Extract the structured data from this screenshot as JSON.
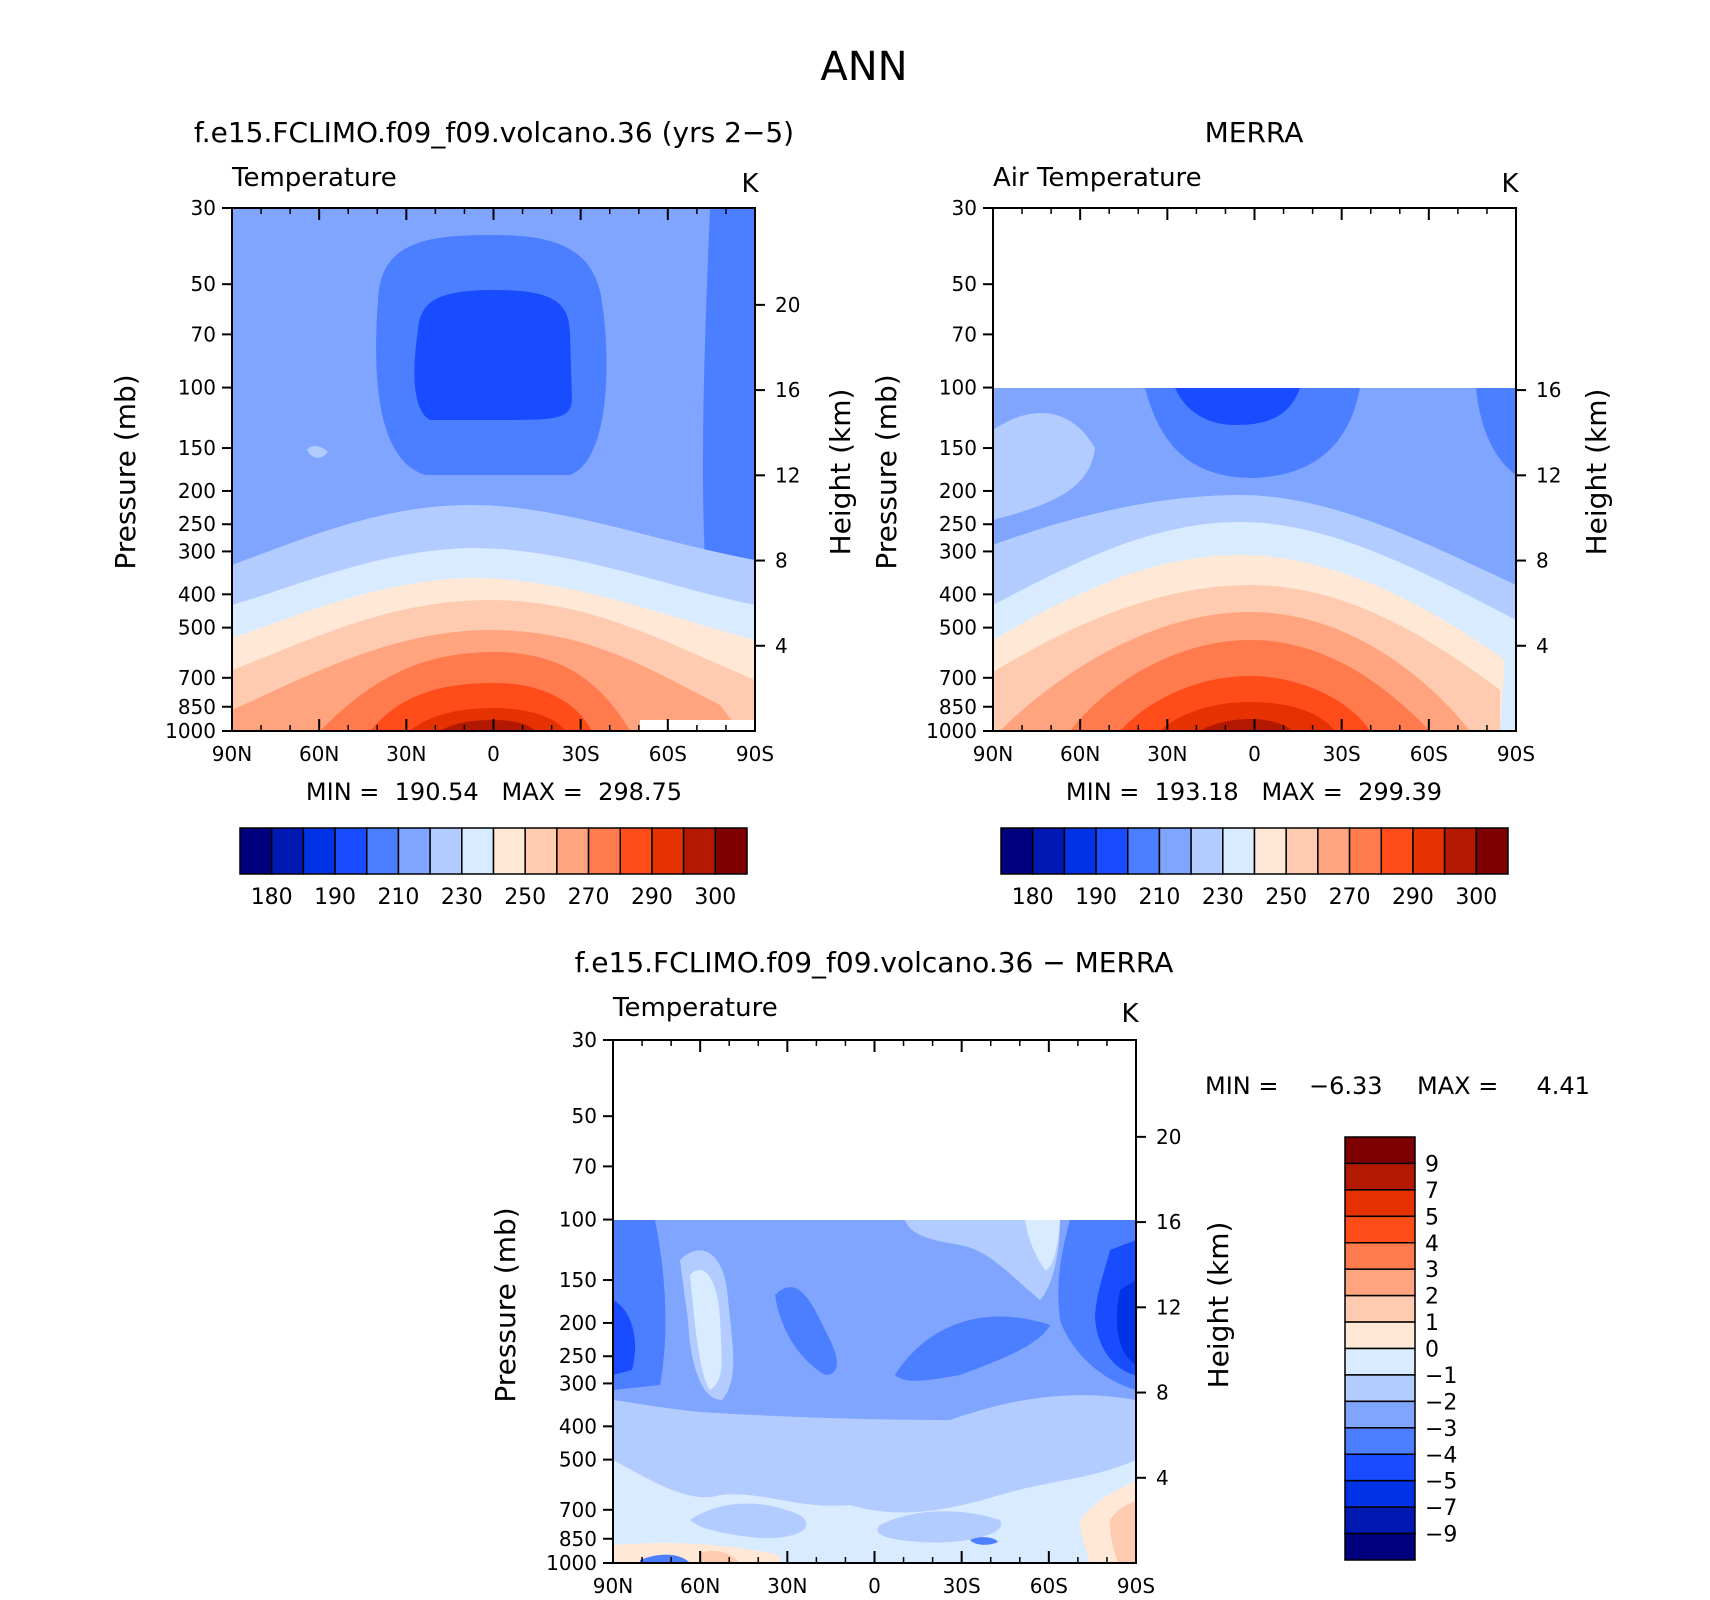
{
  "figure": {
    "title": "ANN"
  },
  "palette_abs": [
    "#00007f",
    "#0019b2",
    "#0033e5",
    "#1a4cff",
    "#4c7fff",
    "#80a5ff",
    "#b3ccff",
    "#d9ebff",
    "#ffe8d6",
    "#ffcbb0",
    "#ffa47f",
    "#ff7a4c",
    "#ff4c19",
    "#e63200",
    "#b21900",
    "#7f0000"
  ],
  "palette_diff": [
    "#00007f",
    "#0019b2",
    "#0033e5",
    "#1a4cff",
    "#4c7fff",
    "#80a5ff",
    "#b3ccff",
    "#d9ebff",
    "#ffe8d6",
    "#ffcbb0",
    "#ffa47f",
    "#ff7a4c",
    "#ff4c19",
    "#e63200",
    "#b21900",
    "#7f0000"
  ],
  "chart_data": [
    {
      "type": "heatmap",
      "title": "f.e15.FCLIMO.f09_f09.volcano.36 (yrs 2−5)",
      "subtitle": "Temperature",
      "units": "K",
      "ylabel": "Pressure (mb)",
      "ylabel_right": "Height (km)",
      "x_ticks": [
        "90N",
        "60N",
        "30N",
        "0",
        "30S",
        "60S",
        "90S"
      ],
      "y_ticks": [
        "30",
        "50",
        "70",
        "100",
        "150",
        "200",
        "250",
        "300",
        "400",
        "500",
        "700",
        "850",
        "1000"
      ],
      "y_ticks_right": [
        "20",
        "16",
        "12",
        "8",
        "4"
      ],
      "ylim": [
        1000,
        30
      ],
      "xlim": [
        90,
        -90
      ],
      "min_max": "MIN =  190.54   MAX =  298.75",
      "colorbar": {
        "orientation": "horizontal",
        "labels": [
          "180",
          "190",
          "210",
          "230",
          "250",
          "270",
          "290",
          "300"
        ]
      }
    },
    {
      "type": "heatmap",
      "title": "MERRA",
      "subtitle": "Air Temperature",
      "units": "K",
      "ylabel": "Pressure (mb)",
      "ylabel_right": "Height (km)",
      "x_ticks": [
        "90N",
        "60N",
        "30N",
        "0",
        "30S",
        "60S",
        "90S"
      ],
      "y_ticks": [
        "30",
        "50",
        "70",
        "100",
        "150",
        "200",
        "250",
        "300",
        "400",
        "500",
        "700",
        "850",
        "1000"
      ],
      "y_ticks_right": [
        "16",
        "12",
        "8",
        "4"
      ],
      "ylim": [
        1000,
        30
      ],
      "data_top_pressure": 100,
      "min_max": "MIN =  193.18   MAX =  299.39",
      "colorbar": {
        "orientation": "horizontal",
        "labels": [
          "180",
          "190",
          "210",
          "230",
          "250",
          "270",
          "290",
          "300"
        ]
      }
    },
    {
      "type": "heatmap",
      "title": "f.e15.FCLIMO.f09_f09.volcano.36 − MERRA",
      "subtitle": "Temperature",
      "units": "K",
      "ylabel": "Pressure (mb)",
      "ylabel_right": "Height (km)",
      "x_ticks": [
        "90N",
        "60N",
        "30N",
        "0",
        "30S",
        "60S",
        "90S"
      ],
      "y_ticks": [
        "30",
        "50",
        "70",
        "100",
        "150",
        "200",
        "250",
        "300",
        "400",
        "500",
        "700",
        "850",
        "1000"
      ],
      "y_ticks_right": [
        "20",
        "16",
        "12",
        "8",
        "4"
      ],
      "ylim": [
        1000,
        30
      ],
      "data_top_pressure": 100,
      "min_max_min": "MIN =    −6.33",
      "min_max_max": "MAX =     4.41",
      "colorbar": {
        "orientation": "vertical",
        "labels": [
          "9",
          "7",
          "5",
          "4",
          "3",
          "2",
          "1",
          "0",
          "−1",
          "−2",
          "−3",
          "−4",
          "−5",
          "−7",
          "−9"
        ]
      }
    }
  ]
}
